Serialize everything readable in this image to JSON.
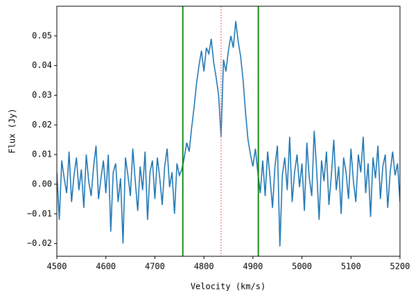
{
  "chart_data": {
    "type": "line",
    "xlabel": "Velocity (km/s)",
    "ylabel": "Flux (Jy)",
    "x": [
      4500,
      4505,
      4510,
      4515,
      4520,
      4525,
      4530,
      4535,
      4540,
      4545,
      4550,
      4555,
      4560,
      4565,
      4570,
      4575,
      4580,
      4585,
      4590,
      4595,
      4600,
      4605,
      4610,
      4615,
      4620,
      4625,
      4630,
      4635,
      4640,
      4645,
      4650,
      4655,
      4660,
      4665,
      4670,
      4675,
      4680,
      4685,
      4690,
      4695,
      4700,
      4705,
      4710,
      4715,
      4720,
      4725,
      4730,
      4735,
      4740,
      4745,
      4750,
      4755,
      4760,
      4765,
      4770,
      4775,
      4780,
      4785,
      4790,
      4795,
      4800,
      4805,
      4810,
      4815,
      4820,
      4825,
      4830,
      4835,
      4840,
      4845,
      4850,
      4855,
      4860,
      4865,
      4870,
      4875,
      4880,
      4885,
      4890,
      4895,
      4900,
      4905,
      4910,
      4915,
      4920,
      4925,
      4930,
      4935,
      4940,
      4945,
      4950,
      4955,
      4960,
      4965,
      4970,
      4975,
      4980,
      4985,
      4990,
      4995,
      5000,
      5005,
      5010,
      5015,
      5020,
      5025,
      5030,
      5035,
      5040,
      5045,
      5050,
      5055,
      5060,
      5065,
      5070,
      5075,
      5080,
      5085,
      5090,
      5095,
      5100,
      5105,
      5110,
      5115,
      5120,
      5125,
      5130,
      5135,
      5140,
      5145,
      5150,
      5155,
      5160,
      5165,
      5170,
      5175,
      5180,
      5185,
      5190,
      5195,
      5200
    ],
    "series": [
      {
        "color": "#1f77b4",
        "values": [
          0.004,
          -0.012,
          0.008,
          0.002,
          -0.003,
          0.011,
          -0.006,
          0.003,
          0.009,
          -0.002,
          0.005,
          -0.008,
          0.01,
          0.001,
          -0.004,
          0.006,
          0.013,
          -0.005,
          0.002,
          0.008,
          -0.003,
          0.01,
          -0.016,
          0.004,
          0.007,
          -0.006,
          0.002,
          -0.02,
          0.009,
          0.003,
          -0.004,
          0.012,
          0.001,
          -0.009,
          0.006,
          -0.002,
          0.011,
          -0.012,
          0.004,
          0.008,
          -0.005,
          0.009,
          0.002,
          -0.007,
          0.006,
          0.012,
          -0.001,
          0.004,
          -0.01,
          0.007,
          0.003,
          0.005,
          0.009,
          0.014,
          0.011,
          0.019,
          0.026,
          0.034,
          0.04,
          0.045,
          0.038,
          0.046,
          0.044,
          0.049,
          0.041,
          0.036,
          0.03,
          0.016,
          0.042,
          0.038,
          0.045,
          0.05,
          0.046,
          0.055,
          0.048,
          0.043,
          0.035,
          0.024,
          0.015,
          0.01,
          0.006,
          0.012,
          0.004,
          -0.003,
          0.008,
          -0.004,
          0.011,
          0.002,
          -0.008,
          0.006,
          0.013,
          -0.021,
          0.003,
          0.009,
          -0.002,
          0.016,
          -0.006,
          0.004,
          0.01,
          -0.001,
          0.007,
          -0.009,
          0.014,
          0.002,
          -0.004,
          0.018,
          0.005,
          -0.012,
          0.008,
          0.001,
          0.011,
          -0.007,
          0.003,
          0.015,
          -0.002,
          0.006,
          -0.01,
          0.009,
          0.004,
          -0.005,
          0.012,
          0.001,
          -0.006,
          0.01,
          0.004,
          0.016,
          -0.003,
          0.007,
          -0.011,
          0.009,
          0.002,
          0.013,
          -0.005,
          0.006,
          0.01,
          -0.008,
          0.004,
          0.011,
          0.003,
          0.007,
          -0.006
        ]
      }
    ],
    "vlines": [
      {
        "x": 4757,
        "color": "#008000",
        "style": "solid"
      },
      {
        "x": 4911,
        "color": "#008000",
        "style": "solid"
      },
      {
        "x": 4835,
        "color": "#ff6666",
        "style": "dotted"
      }
    ],
    "xlim": [
      4500,
      5200
    ],
    "ylim": [
      -0.0243,
      0.06
    ],
    "xticks": [
      4500,
      4600,
      4700,
      4800,
      4900,
      5000,
      5100,
      5200
    ],
    "yticks": [
      {
        "value": -0.02,
        "label": "−0.02"
      },
      {
        "value": -0.01,
        "label": "−0.01"
      },
      {
        "value": 0,
        "label": "0.00"
      },
      0.01,
      0.02,
      0.03,
      0.04,
      0.05
    ]
  }
}
